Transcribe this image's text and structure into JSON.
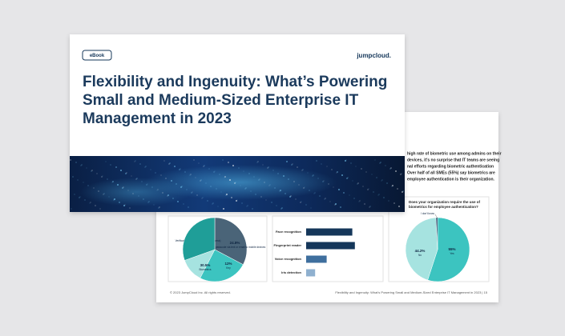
{
  "cover": {
    "badge": "eBook",
    "logo": "jumpcloud.",
    "title_lines": [
      "Flexibility and Ingenuity: What’s Powering",
      "Small and Medium-Sized Enterprise IT",
      "Management in 2023"
    ]
  },
  "back_page": {
    "body_lines": [
      "high rate of biometric use among admins on their",
      "devices, it’s no surprise that IT teams are seeing",
      "nal efforts regarding biometric authentication",
      "Over half of all SMEs (55%) say biometrics are",
      "employee authentication is their organization."
    ],
    "pie_left": {
      "type": "pie",
      "slices": [
        {
          "label": "Verification app (like Norton VIP access)",
          "value": 32.8,
          "value_label": "32.8%",
          "color": "#4a6478"
        },
        {
          "label": "One-time passcode via text or email to mobile devices",
          "value": 24.8,
          "value_label": "24.8%",
          "color": "#3cc4c0"
        },
        {
          "label": "Key",
          "value": 12,
          "value_label": "12%",
          "color": "#a6e3e0"
        },
        {
          "label": "Biometrics",
          "value": 30.5,
          "value_label": "30.5%",
          "color": "#1f9e98"
        }
      ]
    },
    "bar_chart": {
      "type": "bar",
      "xlim": [
        0,
        100
      ],
      "bars": [
        {
          "label": "Face recognition",
          "value": 72,
          "color": "#15375a"
        },
        {
          "label": "Fingerprint reader",
          "value": 76,
          "color": "#15375a"
        },
        {
          "label": "Voice recognition",
          "value": 32,
          "color": "#3f6f9e"
        },
        {
          "label": "Iris detection",
          "value": 14,
          "color": "#8fb0cf"
        }
      ]
    },
    "pie_right": {
      "type": "pie",
      "question_lines": [
        "Does your organization require the use of",
        "biometrics for employee authentication?"
      ],
      "slices": [
        {
          "label": "Yes",
          "value": 55,
          "value_label": "55%",
          "color": "#3cc4c0"
        },
        {
          "label": "No",
          "value": 44.2,
          "value_label": "44.2%",
          "color": "#a6e3e0"
        },
        {
          "label": "I don't know",
          "value": 0.8,
          "color": "#15375a"
        }
      ]
    },
    "footer_left": "© 2023 JumpCloud Inc. All rights reserved.",
    "footer_right": "Flexibility and Ingenuity: What’s Powering Small and Medium-Sized Enterprise IT Management in 2023 | 15"
  }
}
